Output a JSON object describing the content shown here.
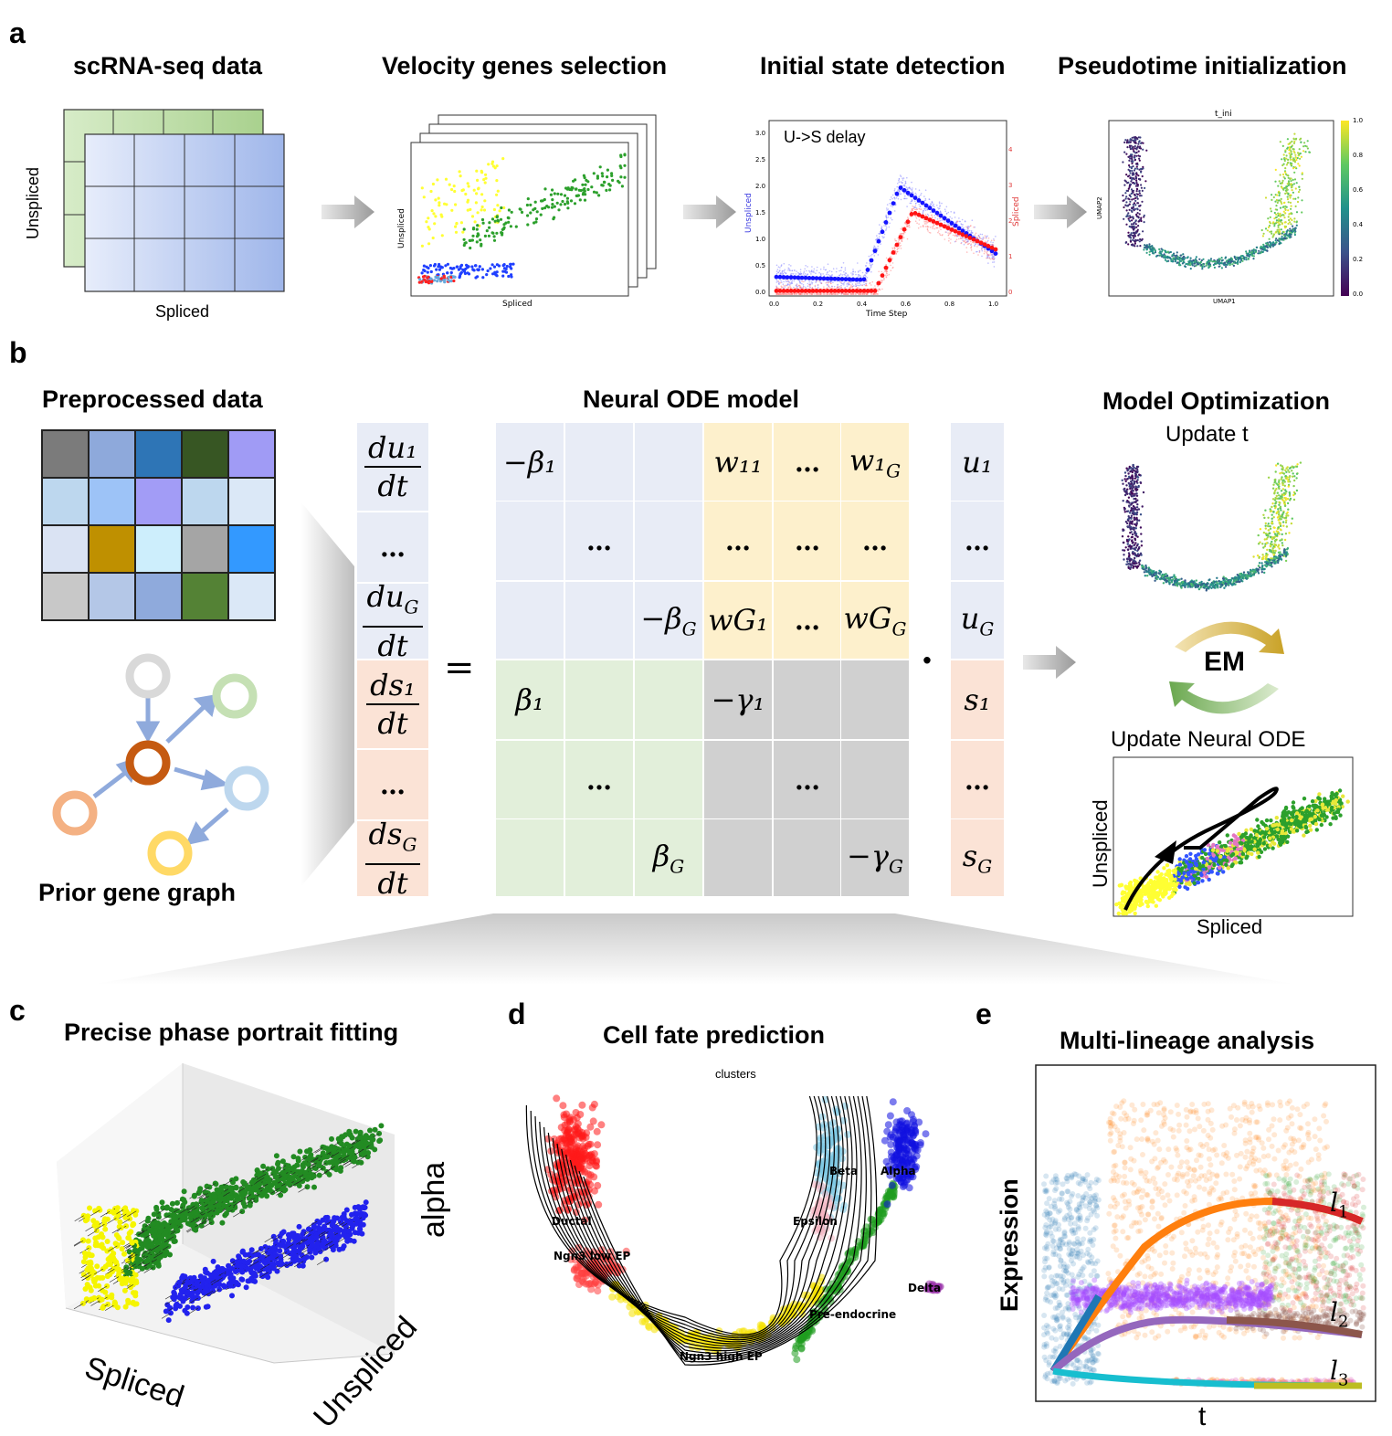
{
  "panels": {
    "a": "a",
    "b": "b",
    "c": "c",
    "d": "d",
    "e": "e"
  },
  "panel_a": {
    "titles": [
      "scRNA-seq data",
      "Velocity genes selection",
      "Initial state detection",
      "Pseudotime initialization"
    ],
    "matrix_ylabel": "Unspliced",
    "matrix_xlabel": "Spliced",
    "scatter_xlabel": "Spliced",
    "scatter_ylabel": "Unspliced",
    "delay_label": "U->S delay",
    "delay_xlabel": "Time Step",
    "delay_ylabel_left": "Unspliced",
    "delay_ylabel_right": "Spliced",
    "delay_xticks": [
      "0.0",
      "0.2",
      "0.4",
      "0.6",
      "0.8",
      "1.0"
    ],
    "delay_yticks_left": [
      "0.0",
      "0.5",
      "1.0",
      "1.5",
      "2.0",
      "2.5",
      "3.0"
    ],
    "delay_yticks_right": [
      "0",
      "1",
      "2",
      "3",
      "4"
    ],
    "umap_title": "t_ini",
    "umap_xlabel": "UMAP1",
    "umap_ylabel": "UMAP2",
    "colorbar_ticks": [
      "1.0",
      "0.8",
      "0.6",
      "0.4",
      "0.2",
      "0.0"
    ]
  },
  "panel_b": {
    "left_title": "Preprocessed data",
    "graph_title": "Prior gene graph",
    "center_title": "Neural ODE model",
    "right_title": "Model Optimization",
    "update_t": "Update t",
    "em": "EM",
    "update_ode": "Update Neural ODE",
    "phase_xlabel": "Spliced",
    "phase_ylabel": "Unspliced",
    "lhs": [
      {
        "num": "du₁",
        "den": "dt"
      },
      {
        "dots": "…"
      },
      {
        "num": "du_G",
        "den": "dt"
      },
      {
        "num": "ds₁",
        "den": "dt"
      },
      {
        "dots": "…"
      },
      {
        "num": "ds_G",
        "den": "dt"
      }
    ],
    "equals": "=",
    "dot": "·",
    "matrix": [
      [
        "−β₁",
        "",
        "",
        "w₁₁",
        "…",
        "w₁G"
      ],
      [
        "",
        "…",
        "",
        "…",
        "…",
        "…"
      ],
      [
        "",
        "",
        "−βG",
        "wG₁",
        "…",
        "wGG"
      ],
      [
        "β₁",
        "",
        "",
        "−γ₁",
        "",
        ""
      ],
      [
        "",
        "…",
        "",
        "",
        "…",
        ""
      ],
      [
        "",
        "",
        "βG",
        "",
        "",
        "−γG"
      ]
    ],
    "rhs": [
      "u₁",
      "…",
      "uG",
      "s₁",
      "…",
      "sG"
    ],
    "heatmap_colors": [
      [
        "#7b7b7b",
        "#8ea9db",
        "#2e75b6",
        "#375623",
        "#a09bf5"
      ],
      [
        "#bdd7ee",
        "#9dc3f7",
        "#a29cf6",
        "#bdd7ee",
        "#dbe8f7"
      ],
      [
        "#dae3f3",
        "#bf9000",
        "#cdeefc",
        "#a5a5a5",
        "#3399ff"
      ],
      [
        "#c8c8c8",
        "#b4c7e7",
        "#8faadc",
        "#548235",
        "#dbe8f7"
      ]
    ]
  },
  "panel_c": {
    "title": "Precise phase portrait fitting",
    "xlabel": "Spliced",
    "ylabel": "Unspliced",
    "zlabel": "alpha"
  },
  "panel_d": {
    "title": "Cell fate prediction",
    "subtitle": "clusters",
    "clusters": [
      "Ductal",
      "Ngn3 low EP",
      "Ngn3 high EP",
      "Pre-endocrine",
      "Beta",
      "Alpha",
      "Epsilon",
      "Delta"
    ]
  },
  "panel_e": {
    "title": "Multi-lineage analysis",
    "ylabel": "Expression",
    "xlabel": "t",
    "lineages": [
      "l",
      "l",
      "l"
    ],
    "lineage_subs": [
      "1",
      "2",
      "3"
    ]
  }
}
